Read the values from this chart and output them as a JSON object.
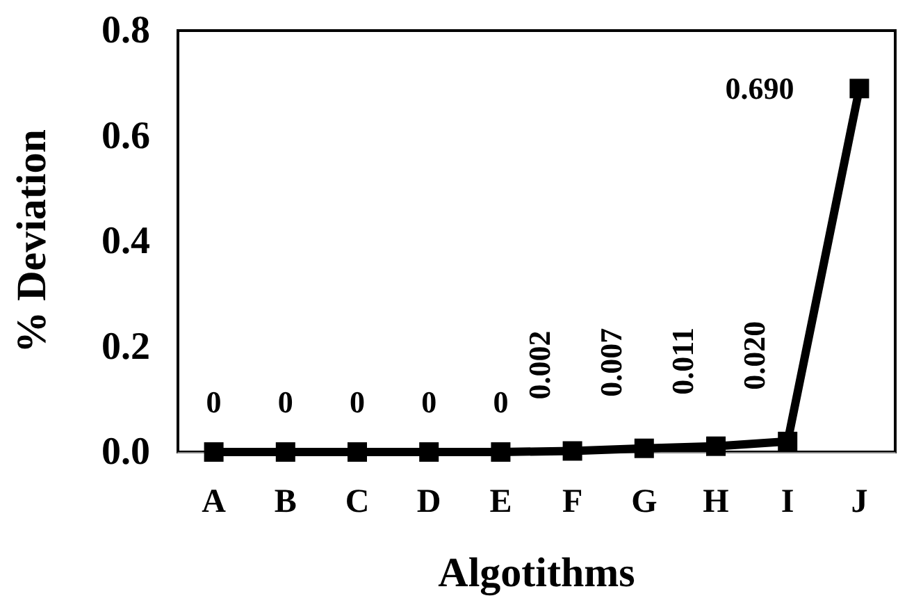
{
  "chart_data": {
    "type": "line",
    "xlabel": "Algotithms",
    "ylabel": "% Deviation",
    "categories": [
      "A",
      "B",
      "C",
      "D",
      "E",
      "F",
      "G",
      "H",
      "I",
      "J"
    ],
    "series": [
      {
        "color": "#000000",
        "values": [
          0,
          0,
          0,
          0,
          0,
          0.002,
          0.007,
          0.011,
          0.02,
          0.69
        ],
        "value_labels": [
          "0",
          "0",
          "0",
          "0",
          "0",
          "0.002",
          "0.007",
          "0.011",
          "0.020",
          "0.690"
        ]
      }
    ],
    "ylim": [
      0,
      0.8
    ],
    "yticks": [
      {
        "value": 0,
        "label": "0.0"
      },
      {
        "value": 0.2,
        "label": "0.2"
      },
      {
        "value": 0.4,
        "label": "0.4"
      },
      {
        "value": 0.6,
        "label": "0.6"
      },
      {
        "value": 0.8,
        "label": "0.8"
      }
    ],
    "grid": false,
    "marker": "square",
    "line_style": "solid"
  }
}
